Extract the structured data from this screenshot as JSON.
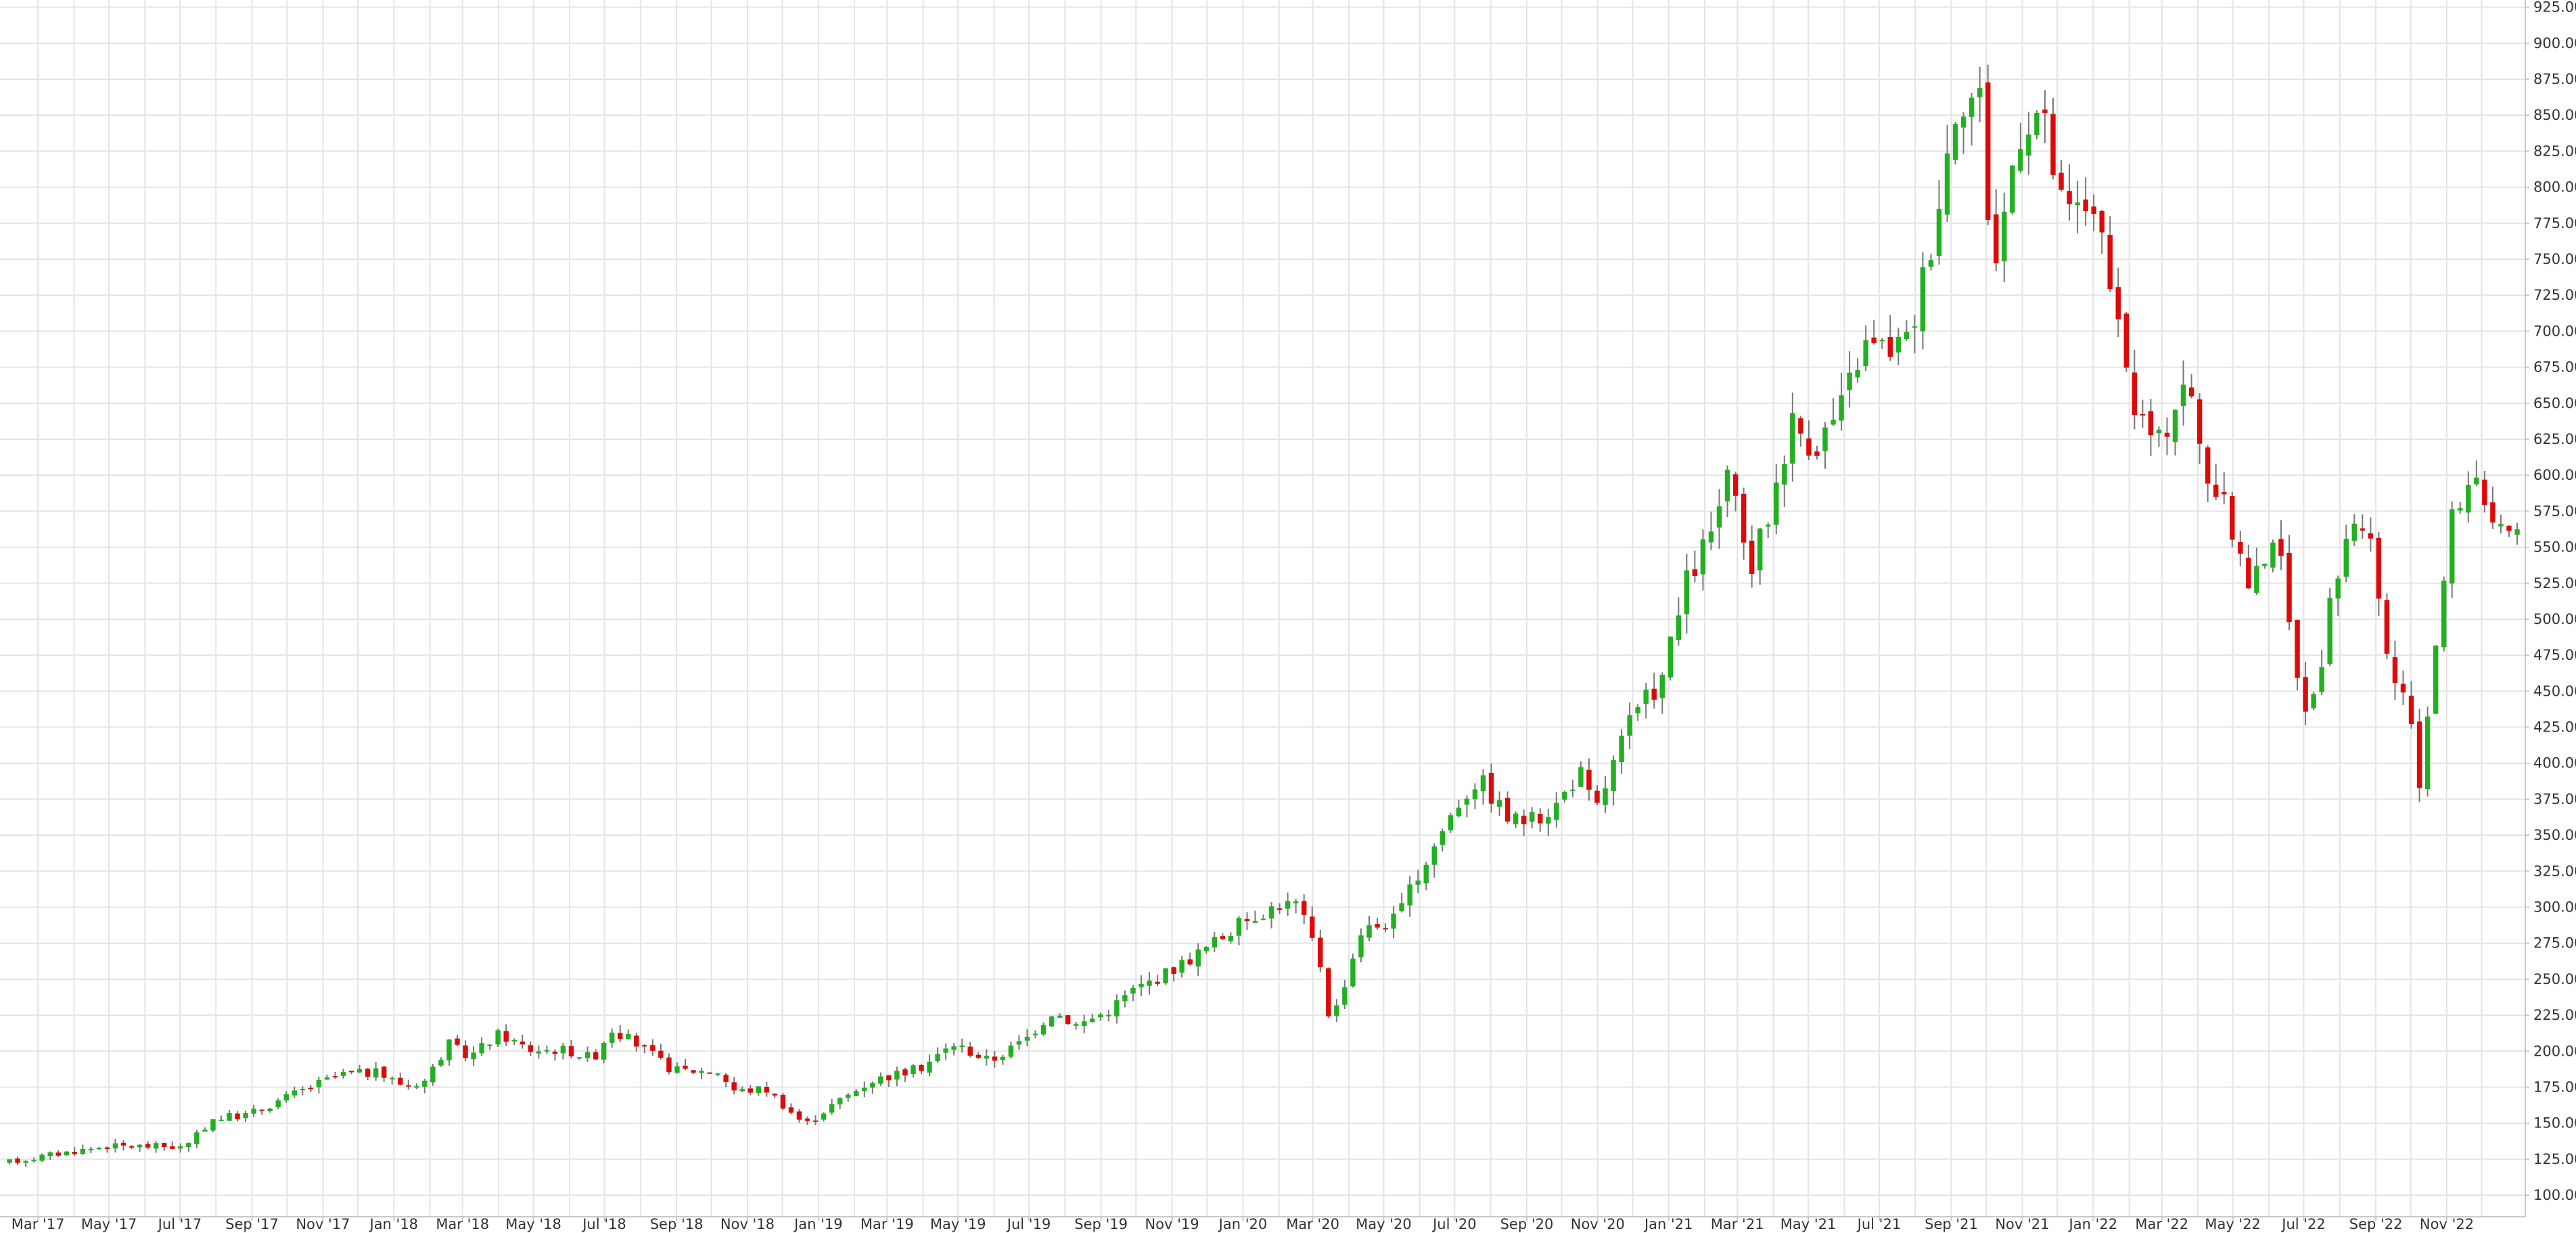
{
  "chart_data": {
    "type": "candlestick",
    "title": "",
    "xlabel": "",
    "ylabel": "",
    "interval": "weekly",
    "x_range": [
      "2017-02-01",
      "2022-12-28"
    ],
    "ylim": [
      85,
      930
    ],
    "y_ticks": [
      100,
      125,
      150,
      175,
      200,
      225,
      250,
      275,
      300,
      325,
      350,
      375,
      400,
      425,
      450,
      475,
      500,
      525,
      550,
      575,
      600,
      625,
      650,
      675,
      700,
      725,
      750,
      775,
      800,
      825,
      850,
      875,
      900,
      925
    ],
    "y_tick_labels": [
      "100.00",
      "125.00",
      "150.00",
      "175.00",
      "200.00",
      "225.00",
      "250.00",
      "275.00",
      "300.00",
      "325.00",
      "350.00",
      "375.00",
      "400.00",
      "425.00",
      "450.00",
      "475.00",
      "500.00",
      "525.00",
      "550.00",
      "575.00",
      "600.00",
      "625.00",
      "650.00",
      "675.00",
      "700.00",
      "725.00",
      "750.00",
      "775.00",
      "800.00",
      "825.00",
      "850.00",
      "875.00",
      "900.00",
      "925.00"
    ],
    "x_ticks": [
      {
        "label": "Mar '17",
        "date": "2017-03-01"
      },
      {
        "label": "May '17",
        "date": "2017-05-01"
      },
      {
        "label": "Jul '17",
        "date": "2017-07-01"
      },
      {
        "label": "Sep '17",
        "date": "2017-09-01"
      },
      {
        "label": "Nov '17",
        "date": "2017-11-01"
      },
      {
        "label": "Jan '18",
        "date": "2018-01-01"
      },
      {
        "label": "Mar '18",
        "date": "2018-03-01"
      },
      {
        "label": "May '18",
        "date": "2018-05-01"
      },
      {
        "label": "Jul '18",
        "date": "2018-07-01"
      },
      {
        "label": "Sep '18",
        "date": "2018-09-01"
      },
      {
        "label": "Nov '18",
        "date": "2018-11-01"
      },
      {
        "label": "Jan '19",
        "date": "2019-01-01"
      },
      {
        "label": "Mar '19",
        "date": "2019-03-01"
      },
      {
        "label": "May '19",
        "date": "2019-05-01"
      },
      {
        "label": "Jul '19",
        "date": "2019-07-01"
      },
      {
        "label": "Sep '19",
        "date": "2019-09-01"
      },
      {
        "label": "Nov '19",
        "date": "2019-11-01"
      },
      {
        "label": "Jan '20",
        "date": "2020-01-01"
      },
      {
        "label": "Mar '20",
        "date": "2020-03-01"
      },
      {
        "label": "May '20",
        "date": "2020-05-01"
      },
      {
        "label": "Jul '20",
        "date": "2020-07-01"
      },
      {
        "label": "Sep '20",
        "date": "2020-09-01"
      },
      {
        "label": "Nov '20",
        "date": "2020-11-01"
      },
      {
        "label": "Jan '21",
        "date": "2021-01-01"
      },
      {
        "label": "Mar '21",
        "date": "2021-03-01"
      },
      {
        "label": "May '21",
        "date": "2021-05-01"
      },
      {
        "label": "Jul '21",
        "date": "2021-07-01"
      },
      {
        "label": "Sep '21",
        "date": "2021-09-01"
      },
      {
        "label": "Nov '21",
        "date": "2021-11-01"
      },
      {
        "label": "Jan '22",
        "date": "2022-01-01"
      },
      {
        "label": "Mar '22",
        "date": "2022-03-01"
      },
      {
        "label": "May '22",
        "date": "2022-05-01"
      },
      {
        "label": "Jul '22",
        "date": "2022-07-01"
      },
      {
        "label": "Sep '22",
        "date": "2022-09-01"
      },
      {
        "label": "Nov '22",
        "date": "2022-11-01"
      }
    ],
    "up_color": "#22b022",
    "down_color": "#dd0a0a",
    "wick_color": "#777777",
    "grid": true,
    "gridline_color": "#e4e4e4",
    "background": "#ffffff",
    "axis_position": "right",
    "keypoints": [
      [
        "2017-02-01",
        122
      ],
      [
        "2017-03-15",
        128
      ],
      [
        "2017-05-01",
        134
      ],
      [
        "2017-06-15",
        134
      ],
      [
        "2017-07-10",
        133
      ],
      [
        "2017-08-01",
        153
      ],
      [
        "2017-09-01",
        156
      ],
      [
        "2017-10-15",
        172
      ],
      [
        "2017-11-20",
        184
      ],
      [
        "2017-12-20",
        185
      ],
      [
        "2018-01-15",
        176
      ],
      [
        "2018-02-01",
        180
      ],
      [
        "2018-02-20",
        205
      ],
      [
        "2018-03-10",
        196
      ],
      [
        "2018-04-05",
        212
      ],
      [
        "2018-05-01",
        201
      ],
      [
        "2018-06-01",
        201
      ],
      [
        "2018-06-25",
        195
      ],
      [
        "2018-07-10",
        216
      ],
      [
        "2018-08-05",
        203
      ],
      [
        "2018-09-01",
        187
      ],
      [
        "2018-10-10",
        186
      ],
      [
        "2018-10-25",
        172
      ],
      [
        "2018-11-20",
        174
      ],
      [
        "2018-12-24",
        149
      ],
      [
        "2019-01-15",
        162
      ],
      [
        "2019-02-20",
        180
      ],
      [
        "2019-04-01",
        188
      ],
      [
        "2019-05-01",
        205
      ],
      [
        "2019-06-01",
        193
      ],
      [
        "2019-07-01",
        208
      ],
      [
        "2019-07-25",
        228
      ],
      [
        "2019-08-15",
        218
      ],
      [
        "2019-09-10",
        228
      ],
      [
        "2019-10-01",
        242
      ],
      [
        "2019-11-01",
        255
      ],
      [
        "2019-12-01",
        270
      ],
      [
        "2020-01-10",
        293
      ],
      [
        "2020-02-05",
        302
      ],
      [
        "2020-02-20",
        302
      ],
      [
        "2020-03-10",
        265
      ],
      [
        "2020-03-20",
        218
      ],
      [
        "2020-04-15",
        283
      ],
      [
        "2020-05-15",
        292
      ],
      [
        "2020-06-15",
        340
      ],
      [
        "2020-07-05",
        370
      ],
      [
        "2020-07-25",
        390
      ],
      [
        "2020-08-20",
        361
      ],
      [
        "2020-09-10",
        360
      ],
      [
        "2020-10-01",
        372
      ],
      [
        "2020-10-20",
        395
      ],
      [
        "2020-11-02",
        365
      ],
      [
        "2020-11-30",
        425
      ],
      [
        "2020-12-30",
        460
      ],
      [
        "2021-01-20",
        525
      ],
      [
        "2021-02-10",
        560
      ],
      [
        "2021-02-25",
        598
      ],
      [
        "2021-03-15",
        532
      ],
      [
        "2021-04-01",
        575
      ],
      [
        "2021-04-20",
        638
      ],
      [
        "2021-05-10",
        620
      ],
      [
        "2021-06-01",
        645
      ],
      [
        "2021-06-20",
        690
      ],
      [
        "2021-07-10",
        688
      ],
      [
        "2021-07-30",
        693
      ],
      [
        "2021-08-20",
        770
      ],
      [
        "2021-09-10",
        865
      ],
      [
        "2021-09-30",
        862
      ],
      [
        "2021-10-10",
        735
      ],
      [
        "2021-11-01",
        840
      ],
      [
        "2021-11-20",
        855
      ],
      [
        "2021-12-10",
        780
      ],
      [
        "2022-01-05",
        790
      ],
      [
        "2022-01-25",
        700
      ],
      [
        "2022-02-10",
        645
      ],
      [
        "2022-03-01",
        620
      ],
      [
        "2022-03-25",
        670
      ],
      [
        "2022-04-10",
        605
      ],
      [
        "2022-05-01",
        570
      ],
      [
        "2022-05-20",
        520
      ],
      [
        "2022-06-10",
        565
      ],
      [
        "2022-06-25",
        478
      ],
      [
        "2022-07-10",
        430
      ],
      [
        "2022-07-30",
        520
      ],
      [
        "2022-08-15",
        575
      ],
      [
        "2022-09-01",
        545
      ],
      [
        "2022-09-15",
        468
      ],
      [
        "2022-10-01",
        440
      ],
      [
        "2022-10-12",
        385
      ],
      [
        "2022-10-25",
        480
      ],
      [
        "2022-11-10",
        575
      ],
      [
        "2022-11-30",
        605
      ],
      [
        "2022-12-15",
        555
      ],
      [
        "2022-12-28",
        560
      ]
    ]
  }
}
